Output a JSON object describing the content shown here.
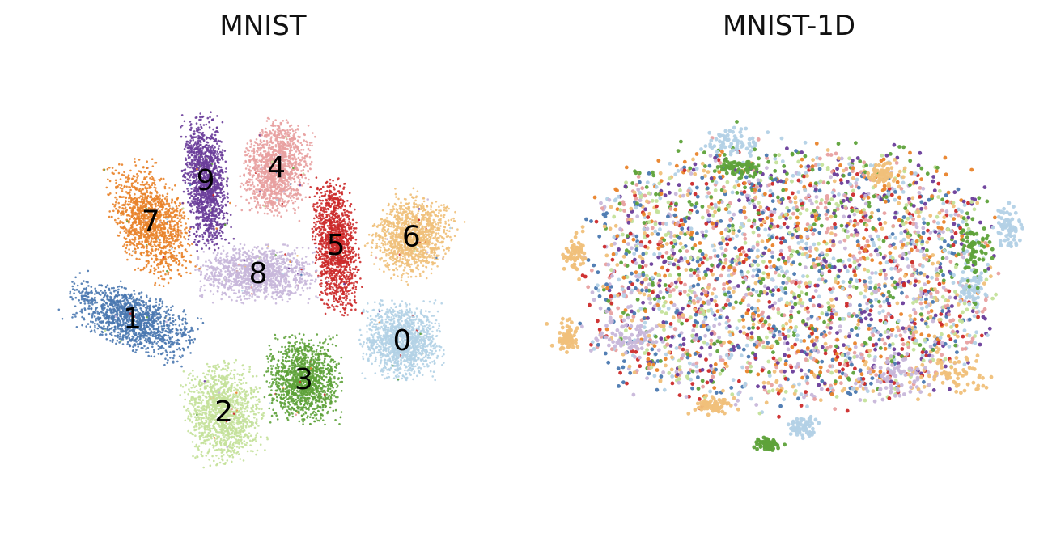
{
  "chart_data": [
    {
      "type": "scatter",
      "title": "MNIST",
      "axes_visible": false,
      "grid": false,
      "legend": "none",
      "xlim": [
        -100,
        100
      ],
      "ylim": [
        -100,
        100
      ],
      "palette": {
        "0": "#b3d1e6",
        "1": "#4a78b0",
        "2": "#c4e19a",
        "3": "#5ea23a",
        "4": "#e8a0a0",
        "5": "#cc2a2a",
        "6": "#f0c07a",
        "7": "#e9832a",
        "8": "#c8b7da",
        "9": "#6a3d9a"
      },
      "clusters": [
        {
          "label": "0",
          "center": [
            60,
            -22
          ],
          "spread": [
            15,
            15
          ],
          "rotation": 0
        },
        {
          "label": "1",
          "center": [
            -58,
            -12
          ],
          "spread": [
            25,
            11
          ],
          "rotation": -25
        },
        {
          "label": "2",
          "center": [
            -18,
            -55
          ],
          "spread": [
            14,
            19
          ],
          "rotation": 10
        },
        {
          "label": "3",
          "center": [
            17,
            -40
          ],
          "spread": [
            14,
            17
          ],
          "rotation": 0
        },
        {
          "label": "4",
          "center": [
            5,
            58
          ],
          "spread": [
            12,
            18
          ],
          "rotation": -10
        },
        {
          "label": "5",
          "center": [
            31,
            22
          ],
          "spread": [
            8,
            26
          ],
          "rotation": 5
        },
        {
          "label": "6",
          "center": [
            64,
            26
          ],
          "spread": [
            14,
            16
          ],
          "rotation": -30
        },
        {
          "label": "7",
          "center": [
            -50,
            33
          ],
          "spread": [
            13,
            24
          ],
          "rotation": 20
        },
        {
          "label": "8",
          "center": [
            -3,
            9
          ],
          "spread": [
            22,
            11
          ],
          "rotation": 0
        },
        {
          "label": "9",
          "center": [
            -26,
            52
          ],
          "spread": [
            8,
            26
          ],
          "rotation": 5
        }
      ]
    },
    {
      "type": "scatter",
      "title": "MNIST-1D",
      "axes_visible": false,
      "grid": false,
      "legend": "none",
      "xlim": [
        -100,
        100
      ],
      "ylim": [
        -100,
        100
      ],
      "palette": {
        "0": "#b3d1e6",
        "1": "#4a78b0",
        "2": "#c4e19a",
        "3": "#5ea23a",
        "4": "#e8a0a0",
        "5": "#cc2a2a",
        "6": "#f0c07a",
        "7": "#e9832a",
        "8": "#c8b7da",
        "9": "#6a3d9a"
      },
      "mixed_cloud": {
        "center": [
          0,
          8
        ],
        "spread": [
          52,
          30
        ]
      },
      "outlier_groups": [
        {
          "class": "0",
          "center": [
            -25,
            70
          ],
          "spread": [
            12,
            5
          ]
        },
        {
          "class": "0",
          "center": [
            95,
            30
          ],
          "spread": [
            5,
            8
          ]
        },
        {
          "class": "0",
          "center": [
            80,
            2
          ],
          "spread": [
            5,
            7
          ]
        },
        {
          "class": "0",
          "center": [
            5,
            -62
          ],
          "spread": [
            6,
            4
          ]
        },
        {
          "class": "6",
          "center": [
            -95,
            18
          ],
          "spread": [
            4,
            7
          ]
        },
        {
          "class": "6",
          "center": [
            -98,
            -20
          ],
          "spread": [
            4,
            6
          ]
        },
        {
          "class": "6",
          "center": [
            -35,
            -52
          ],
          "spread": [
            7,
            3
          ]
        },
        {
          "class": "6",
          "center": [
            70,
            -38
          ],
          "spread": [
            14,
            7
          ]
        },
        {
          "class": "6",
          "center": [
            40,
            55
          ],
          "spread": [
            5,
            4
          ]
        },
        {
          "class": "3",
          "center": [
            80,
            20
          ],
          "spread": [
            5,
            12
          ]
        },
        {
          "class": "3",
          "center": [
            -22,
            58
          ],
          "spread": [
            9,
            4
          ]
        },
        {
          "class": "3",
          "center": [
            -10,
            -70
          ],
          "spread": [
            4,
            2
          ]
        },
        {
          "class": "8",
          "center": [
            -70,
            -20
          ],
          "spread": [
            10,
            8
          ]
        },
        {
          "class": "8",
          "center": [
            45,
            -40
          ],
          "spread": [
            12,
            8
          ]
        }
      ],
      "class_biases": {
        "0": [
          0,
          0
        ],
        "1": [
          -25,
          -10
        ],
        "2": [
          10,
          0
        ],
        "3": [
          5,
          18
        ],
        "4": [
          0,
          0
        ],
        "5": [
          -10,
          -15
        ],
        "6": [
          0,
          0
        ],
        "7": [
          -5,
          15
        ],
        "8": [
          -15,
          -10
        ],
        "9": [
          30,
          10
        ]
      }
    }
  ]
}
